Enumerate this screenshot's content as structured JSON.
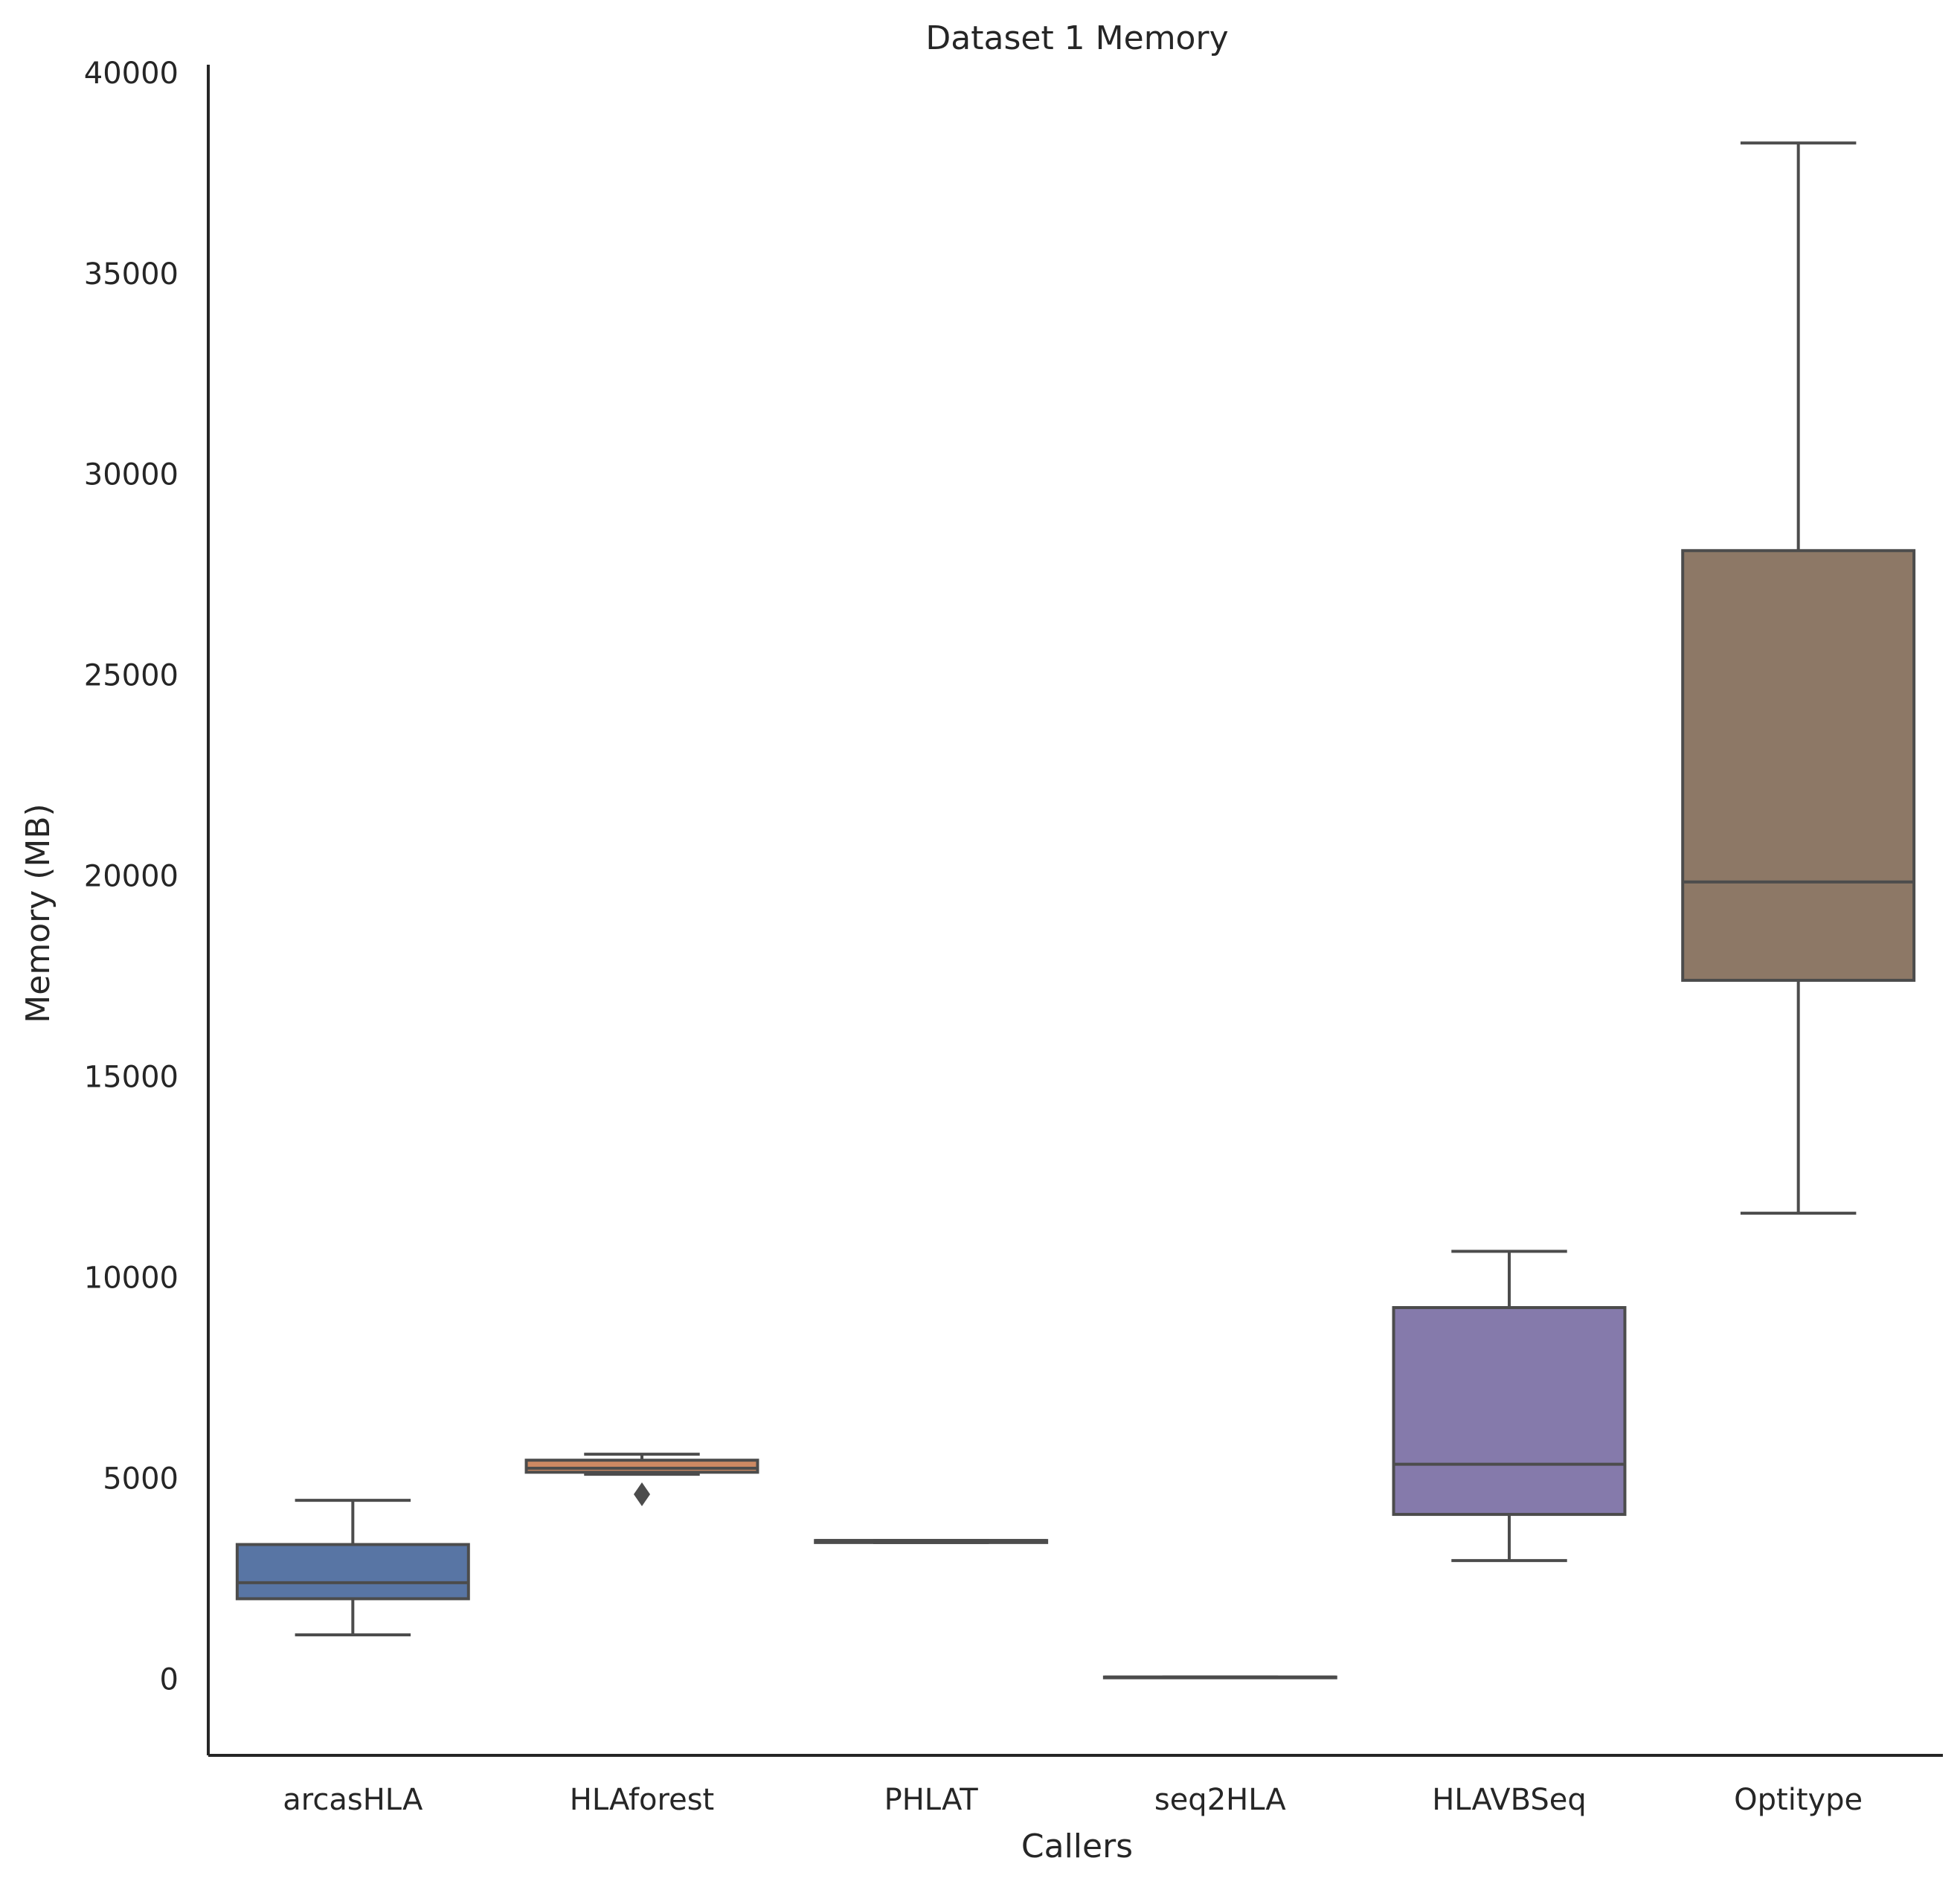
{
  "chart_data": {
    "type": "box",
    "title": "Dataset 1 Memory",
    "xlabel": "Callers",
    "ylabel": "Memory (MB)",
    "ylim": [
      -1900,
      40200
    ],
    "yticks": [
      0,
      5000,
      10000,
      15000,
      20000,
      25000,
      30000,
      35000,
      40000
    ],
    "grid": false,
    "categories": [
      "arcasHLA",
      "HLAforest",
      "PHLAT",
      "seq2HLA",
      "HLAVBSeq",
      "Optitype"
    ],
    "boxes": [
      {
        "category": "arcasHLA",
        "whisker_low": 1100,
        "q1": 2000,
        "median": 2400,
        "q3": 3350,
        "whisker_high": 4450,
        "outliers": [],
        "color": "#5875a4"
      },
      {
        "category": "HLAforest",
        "whisker_low": 5100,
        "q1": 5150,
        "median": 5250,
        "q3": 5450,
        "whisker_high": 5600,
        "outliers": [
          4600
        ],
        "color": "#cc8963"
      },
      {
        "category": "PHLAT",
        "whisker_low": 3400,
        "q1": 3400,
        "median": 3450,
        "q3": 3450,
        "whisker_high": 3450,
        "outliers": [],
        "color": "#5f9e6e"
      },
      {
        "category": "seq2HLA",
        "whisker_low": 50,
        "q1": 50,
        "median": 50,
        "q3": 50,
        "whisker_high": 50,
        "outliers": [],
        "color": "#b55d60"
      },
      {
        "category": "HLAVBSeq",
        "whisker_low": 2950,
        "q1": 4100,
        "median": 5350,
        "q3": 9250,
        "whisker_high": 10650,
        "outliers": [],
        "color": "#857aab"
      },
      {
        "category": "Optitype",
        "whisker_low": 11600,
        "q1": 17400,
        "median": 19850,
        "q3": 28100,
        "whisker_high": 38250,
        "outliers": [],
        "color": "#8d7866"
      }
    ],
    "line_color": "#4c4c4c",
    "axis_color": "#262626"
  }
}
